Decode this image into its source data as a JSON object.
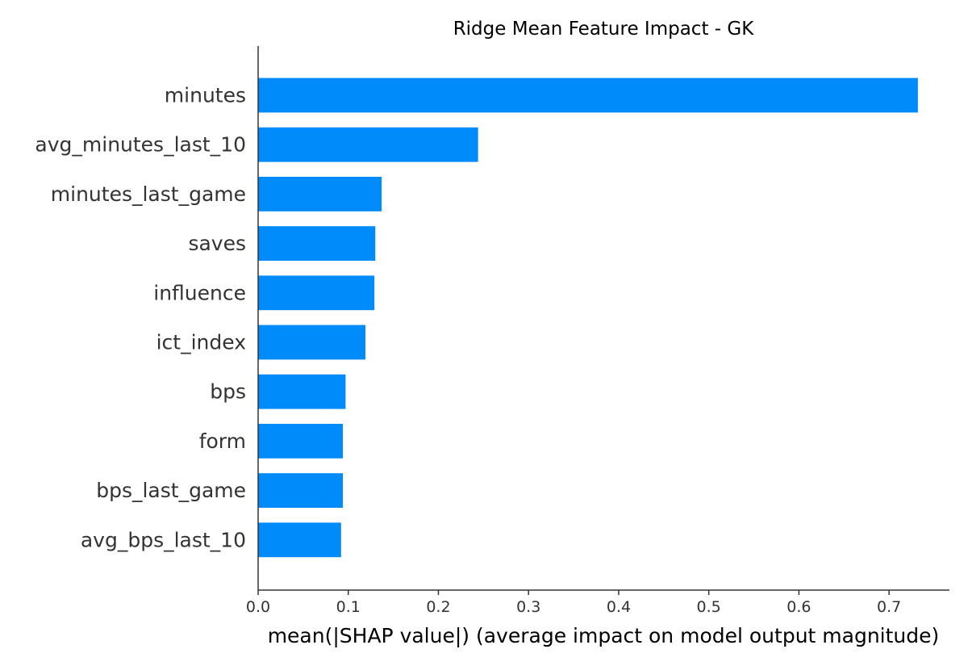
{
  "chart_data": {
    "type": "bar",
    "orientation": "horizontal",
    "title": "Ridge Mean Feature Impact - GK",
    "xlabel": "mean(|SHAP value|) (average impact on model output magnitude)",
    "ylabel": "",
    "categories": [
      "minutes",
      "avg_minutes_last_10",
      "minutes_last_game",
      "saves",
      "influence",
      "ict_index",
      "bps",
      "form",
      "bps_last_game",
      "avg_bps_last_10"
    ],
    "values": [
      0.732,
      0.244,
      0.137,
      0.13,
      0.129,
      0.119,
      0.097,
      0.094,
      0.094,
      0.092
    ],
    "xlim": [
      0,
      0.767
    ],
    "xticks": [
      "0.0",
      "0.1",
      "0.2",
      "0.3",
      "0.4",
      "0.5",
      "0.6",
      "0.7"
    ],
    "grid": false,
    "bar_color": "#008bfb",
    "axis_color": "#333333"
  }
}
